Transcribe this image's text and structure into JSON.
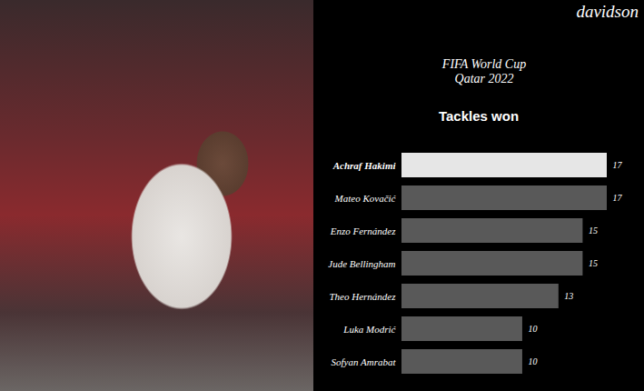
{
  "chart_data": {
    "type": "bar",
    "orientation": "horizontal",
    "caption": "davidson",
    "subtitle": [
      "FIFA World Cup",
      "Qatar 2022"
    ],
    "title": "Tackles won",
    "categories": [
      "Achraf Hakimi",
      "Mateo Kovačić",
      "Enzo Fernández",
      "Jude Bellingham",
      "Theo Hernández",
      "Luka Modrić",
      "Sofyan Amrabat"
    ],
    "values": [
      17,
      17,
      15,
      15,
      13,
      10,
      10
    ],
    "colors": [
      "#e6e6e6",
      "#595959",
      "#595959",
      "#595959",
      "#595959",
      "#595959",
      "#595959"
    ],
    "xlim": [
      0,
      17
    ],
    "xticks": [],
    "grid": false,
    "data_labels": true,
    "tick_labels": false
  }
}
